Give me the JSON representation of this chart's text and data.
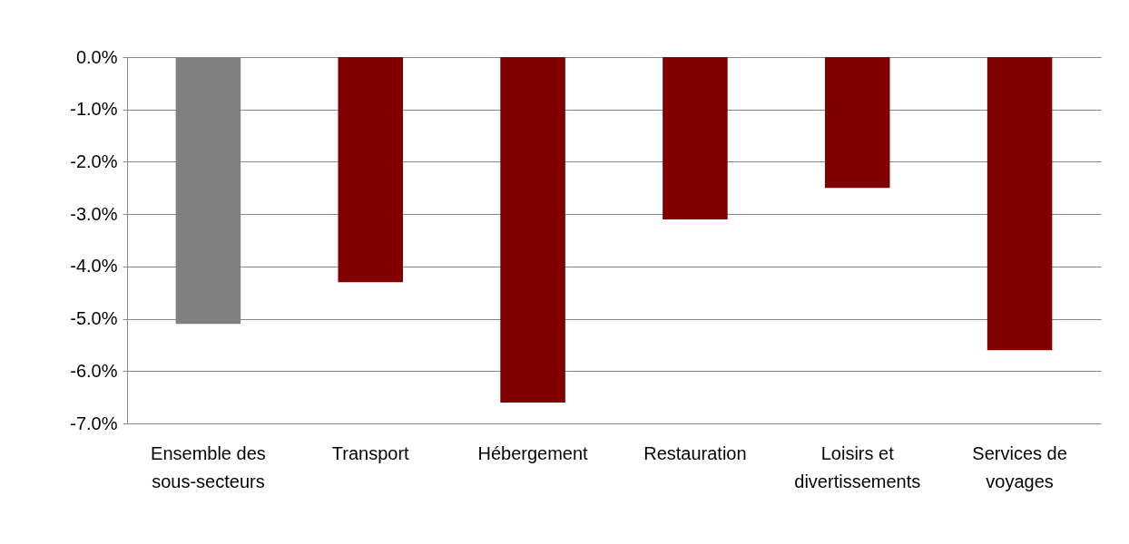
{
  "chart_data": {
    "type": "bar",
    "categories": [
      "Ensemble des sous-secteurs",
      "Transport",
      "Hébergement",
      "Restauration",
      "Loisirs et divertissements",
      "Services de voyages"
    ],
    "values": [
      -5.1,
      -4.3,
      -6.6,
      -3.1,
      -2.5,
      -5.6
    ],
    "colors": [
      "#808080",
      "#800000",
      "#800000",
      "#800000",
      "#800000",
      "#800000"
    ],
    "ylim": [
      -7,
      0
    ],
    "yticks": [
      {
        "value": 0,
        "label": "0.0%"
      },
      {
        "value": -1,
        "label": "-1.0%"
      },
      {
        "value": -2,
        "label": "-2.0%"
      },
      {
        "value": -3,
        "label": "-3.0%"
      },
      {
        "value": -4,
        "label": "-4.0%"
      },
      {
        "value": -5,
        "label": "-5.0%"
      },
      {
        "value": -6,
        "label": "-6.0%"
      },
      {
        "value": -7,
        "label": "-7.0%"
      }
    ],
    "grid": "y",
    "legend": false
  }
}
